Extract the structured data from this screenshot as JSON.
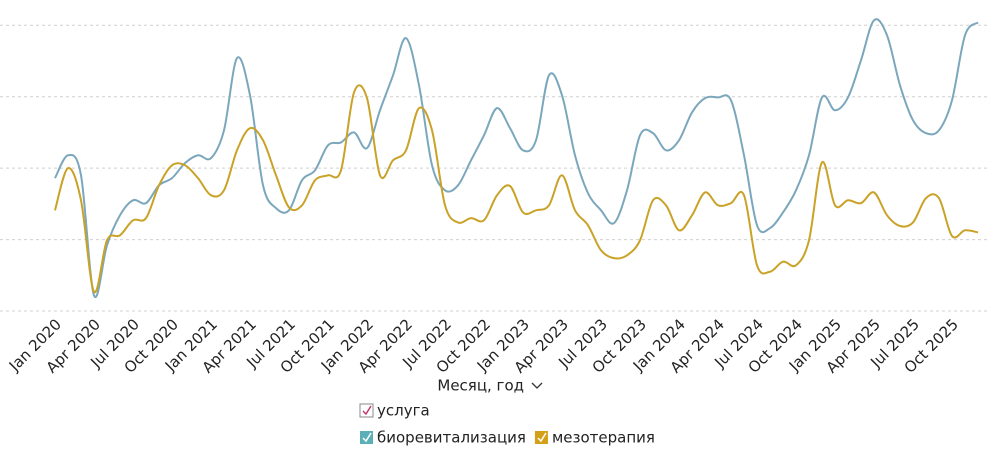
{
  "chart_data": {
    "type": "line",
    "x_label": "Месяц, год",
    "legend_title": "услуга",
    "categories": [
      "Jan 2020",
      null,
      null,
      "Apr 2020",
      null,
      null,
      "Jul 2020",
      null,
      null,
      "Oct 2020",
      null,
      null,
      "Jan 2021",
      null,
      null,
      "Apr 2021",
      null,
      null,
      "Jul 2021",
      null,
      null,
      "Oct 2021",
      null,
      null,
      "Jan 2022",
      null,
      null,
      "Apr 2022",
      null,
      null,
      "Jul 2022",
      null,
      null,
      "Oct 2022",
      null,
      null,
      "Jan 2023",
      null,
      null,
      "Apr 2023",
      null,
      null,
      "Jul 2023",
      null,
      null,
      "Oct 2023",
      null,
      null,
      "Jan 2024",
      null,
      null,
      "Apr 2024",
      null,
      null,
      "Jul 2024",
      null,
      null,
      "Oct 2024",
      null,
      null,
      "Jan 2025",
      null,
      null,
      "Apr 2025",
      null,
      null,
      "Jul 2025",
      null,
      null,
      "Oct 2025",
      null,
      null
    ],
    "series": [
      {
        "name": "биоревитализация",
        "color": "#7ba7bc",
        "legend_color": "#5bb0b8",
        "values": [
          18.6,
          21.8,
          19.0,
          2.2,
          9.2,
          13.4,
          15.5,
          15.1,
          17.6,
          18.6,
          20.7,
          21.8,
          21.4,
          25.3,
          35.4,
          30.2,
          17.6,
          14.4,
          14.1,
          18.3,
          19.7,
          23.2,
          23.6,
          25.0,
          22.8,
          28.1,
          33.0,
          38.2,
          31.6,
          20.4,
          16.9,
          17.6,
          21.1,
          24.6,
          28.4,
          25.6,
          22.5,
          23.9,
          33.0,
          30.2,
          21.8,
          16.5,
          14.1,
          12.3,
          16.9,
          24.6,
          24.9,
          22.5,
          23.9,
          27.8,
          29.8,
          29.9,
          29.5,
          21.8,
          12.0,
          11.6,
          13.8,
          16.9,
          21.8,
          29.9,
          28.1,
          29.9,
          35.1,
          40.7,
          38.6,
          31.6,
          26.7,
          24.9,
          25.3,
          29.5,
          38.6,
          40.4
        ]
      },
      {
        "name": "мезотерапия",
        "color": "#c9a227",
        "legend_color": "#d4a017",
        "values": [
          14.1,
          20.0,
          15.5,
          2.7,
          9.9,
          10.6,
          12.7,
          13.0,
          17.6,
          20.4,
          20.4,
          18.6,
          16.2,
          16.9,
          22.5,
          25.6,
          23.9,
          19.0,
          14.5,
          14.8,
          18.3,
          19.0,
          19.7,
          30.6,
          29.8,
          19.0,
          21.1,
          22.5,
          28.4,
          25.3,
          14.8,
          12.4,
          13.0,
          12.7,
          16.2,
          17.5,
          13.8,
          14.1,
          14.8,
          19.0,
          14.1,
          12.0,
          8.5,
          7.4,
          7.8,
          9.9,
          15.5,
          14.8,
          11.3,
          13.4,
          16.6,
          14.8,
          15.1,
          16.2,
          6.4,
          5.5,
          6.9,
          6.4,
          9.9,
          20.8,
          14.8,
          15.5,
          15.1,
          16.6,
          13.4,
          11.9,
          12.4,
          15.8,
          15.8,
          10.5,
          11.3,
          11.0
        ]
      }
    ],
    "ylim": [
      0,
      42
    ],
    "yticks": [
      0,
      10,
      20,
      30,
      40
    ],
    "grid": true
  }
}
